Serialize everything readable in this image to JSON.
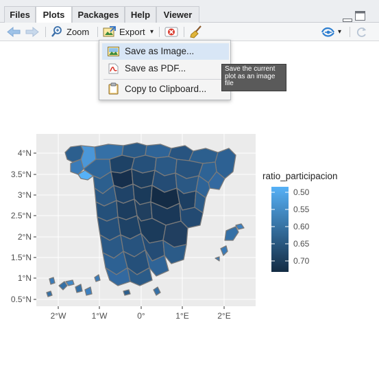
{
  "tabs": [
    {
      "label": "Files",
      "active": false
    },
    {
      "label": "Plots",
      "active": true
    },
    {
      "label": "Packages",
      "active": false
    },
    {
      "label": "Help",
      "active": false
    },
    {
      "label": "Viewer",
      "active": false
    }
  ],
  "toolbar": {
    "zoom_label": "Zoom",
    "export_label": "Export",
    "export_caret": "▾",
    "publish_caret": "▾"
  },
  "export_menu": {
    "items": [
      {
        "label": "Save as Image...",
        "icon": "image-icon",
        "highlighted": true
      },
      {
        "label": "Save as PDF...",
        "icon": "pdf-icon",
        "highlighted": false
      },
      {
        "label": "Copy to Clipboard...",
        "icon": "clipboard-icon",
        "highlighted": false
      }
    ]
  },
  "tooltip": {
    "lines": [
      "Save the current",
      "plot as an image",
      "file"
    ]
  },
  "chart_data": {
    "type": "choropleth",
    "x_ticks": [
      "2°W",
      "1°W",
      "0°",
      "1°E",
      "2°E"
    ],
    "y_ticks": [
      "4°N",
      "3.5°N",
      "3°N",
      "2.5°N",
      "2°N",
      "1.5°N",
      "1°N",
      "0.5°N"
    ],
    "legend": {
      "title": "ratio_participacion",
      "labels": [
        "0.50",
        "0.55",
        "0.60",
        "0.65",
        "0.70"
      ],
      "color_low": "#56b1f7",
      "color_high": "#132b43",
      "placement": "right"
    },
    "grid": true,
    "panel_background": "#ebebeb"
  },
  "colors": {
    "accent_blue": "#3a7bc8",
    "stop_red": "#d9372b",
    "highlight": "#d8e6f6"
  }
}
